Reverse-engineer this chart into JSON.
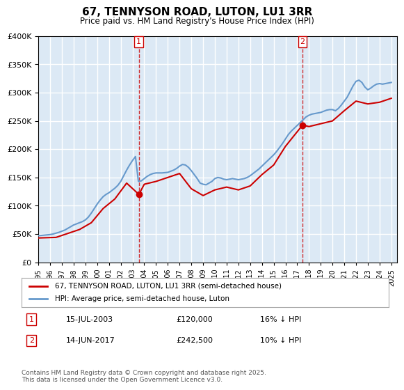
{
  "title": "67, TENNYSON ROAD, LUTON, LU1 3RR",
  "subtitle": "Price paid vs. HM Land Registry's House Price Index (HPI)",
  "legend_line1": "67, TENNYSON ROAD, LUTON, LU1 3RR (semi-detached house)",
  "legend_line2": "HPI: Average price, semi-detached house, Luton",
  "footnote": "Contains HM Land Registry data © Crown copyright and database right 2025.\nThis data is licensed under the Open Government Licence v3.0.",
  "purchase1_date": "15-JUL-2003",
  "purchase1_price": 120000,
  "purchase1_hpi": "16% ↓ HPI",
  "purchase1_x": 2003.54,
  "purchase2_date": "14-JUN-2017",
  "purchase2_price": 242500,
  "purchase2_hpi": "10% ↓ HPI",
  "purchase2_x": 2017.45,
  "ylim": [
    0,
    400000
  ],
  "xlim": [
    1995,
    2025.5
  ],
  "red_color": "#cc0000",
  "blue_color": "#6699cc",
  "dashed_color": "#cc0000",
  "bg_color": "#dce9f5",
  "plot_bg": "#dce9f5",
  "grid_color": "#ffffff",
  "hpi_data": {
    "years": [
      1995.0,
      1995.25,
      1995.5,
      1995.75,
      1996.0,
      1996.25,
      1996.5,
      1996.75,
      1997.0,
      1997.25,
      1997.5,
      1997.75,
      1998.0,
      1998.25,
      1998.5,
      1998.75,
      1999.0,
      1999.25,
      1999.5,
      1999.75,
      2000.0,
      2000.25,
      2000.5,
      2000.75,
      2001.0,
      2001.25,
      2001.5,
      2001.75,
      2002.0,
      2002.25,
      2002.5,
      2002.75,
      2003.0,
      2003.25,
      2003.5,
      2003.75,
      2004.0,
      2004.25,
      2004.5,
      2004.75,
      2005.0,
      2005.25,
      2005.5,
      2005.75,
      2006.0,
      2006.25,
      2006.5,
      2006.75,
      2007.0,
      2007.25,
      2007.5,
      2007.75,
      2008.0,
      2008.25,
      2008.5,
      2008.75,
      2009.0,
      2009.25,
      2009.5,
      2009.75,
      2010.0,
      2010.25,
      2010.5,
      2010.75,
      2011.0,
      2011.25,
      2011.5,
      2011.75,
      2012.0,
      2012.25,
      2012.5,
      2012.75,
      2013.0,
      2013.25,
      2013.5,
      2013.75,
      2014.0,
      2014.25,
      2014.5,
      2014.75,
      2015.0,
      2015.25,
      2015.5,
      2015.75,
      2016.0,
      2016.25,
      2016.5,
      2016.75,
      2017.0,
      2017.25,
      2017.5,
      2017.75,
      2018.0,
      2018.25,
      2018.5,
      2018.75,
      2019.0,
      2019.25,
      2019.5,
      2019.75,
      2020.0,
      2020.25,
      2020.5,
      2020.75,
      2021.0,
      2021.25,
      2021.5,
      2021.75,
      2022.0,
      2022.25,
      2022.5,
      2022.75,
      2023.0,
      2023.25,
      2023.5,
      2023.75,
      2024.0,
      2024.25,
      2024.5,
      2024.75,
      2025.0
    ],
    "values": [
      47000,
      47500,
      48000,
      48500,
      49000,
      50000,
      51500,
      53000,
      55000,
      57000,
      60000,
      63000,
      66000,
      68000,
      70000,
      72000,
      75000,
      80000,
      87000,
      95000,
      103000,
      110000,
      116000,
      120000,
      123000,
      127000,
      131000,
      136000,
      143000,
      153000,
      163000,
      172000,
      180000,
      187000,
      143000,
      144000,
      148000,
      152000,
      155000,
      157000,
      158000,
      158000,
      158000,
      158500,
      159000,
      161000,
      163000,
      166000,
      170000,
      173000,
      172000,
      168000,
      162000,
      155000,
      148000,
      140000,
      138000,
      137000,
      140000,
      143000,
      148000,
      150000,
      149000,
      147000,
      146000,
      147000,
      148000,
      147000,
      146000,
      147000,
      148000,
      150000,
      153000,
      157000,
      161000,
      165000,
      170000,
      175000,
      180000,
      185000,
      190000,
      196000,
      203000,
      210000,
      218000,
      226000,
      232000,
      237000,
      242000,
      247000,
      252000,
      257000,
      260000,
      262000,
      263000,
      264000,
      265000,
      267000,
      269000,
      270000,
      270000,
      268000,
      272000,
      278000,
      285000,
      292000,
      302000,
      312000,
      320000,
      322000,
      318000,
      310000,
      305000,
      308000,
      312000,
      315000,
      316000,
      315000,
      316000,
      317000,
      318000
    ]
  },
  "property_data": {
    "years": [
      1995.0,
      1996.5,
      1997.5,
      1998.5,
      1999.5,
      2000.5,
      2001.5,
      2002.5,
      2003.54,
      2004.0,
      2005.0,
      2006.0,
      2007.0,
      2008.0,
      2009.0,
      2010.0,
      2011.0,
      2012.0,
      2013.0,
      2014.0,
      2015.0,
      2016.0,
      2017.45,
      2018.0,
      2019.0,
      2020.0,
      2021.0,
      2022.0,
      2023.0,
      2024.0,
      2025.0
    ],
    "values": [
      43000,
      44000,
      51000,
      58000,
      70000,
      95000,
      112000,
      140000,
      120000,
      138000,
      143000,
      150000,
      157000,
      130000,
      118000,
      128000,
      133000,
      128000,
      135000,
      155000,
      172000,
      205000,
      242500,
      240000,
      245000,
      250000,
      268000,
      285000,
      280000,
      283000,
      290000
    ]
  }
}
